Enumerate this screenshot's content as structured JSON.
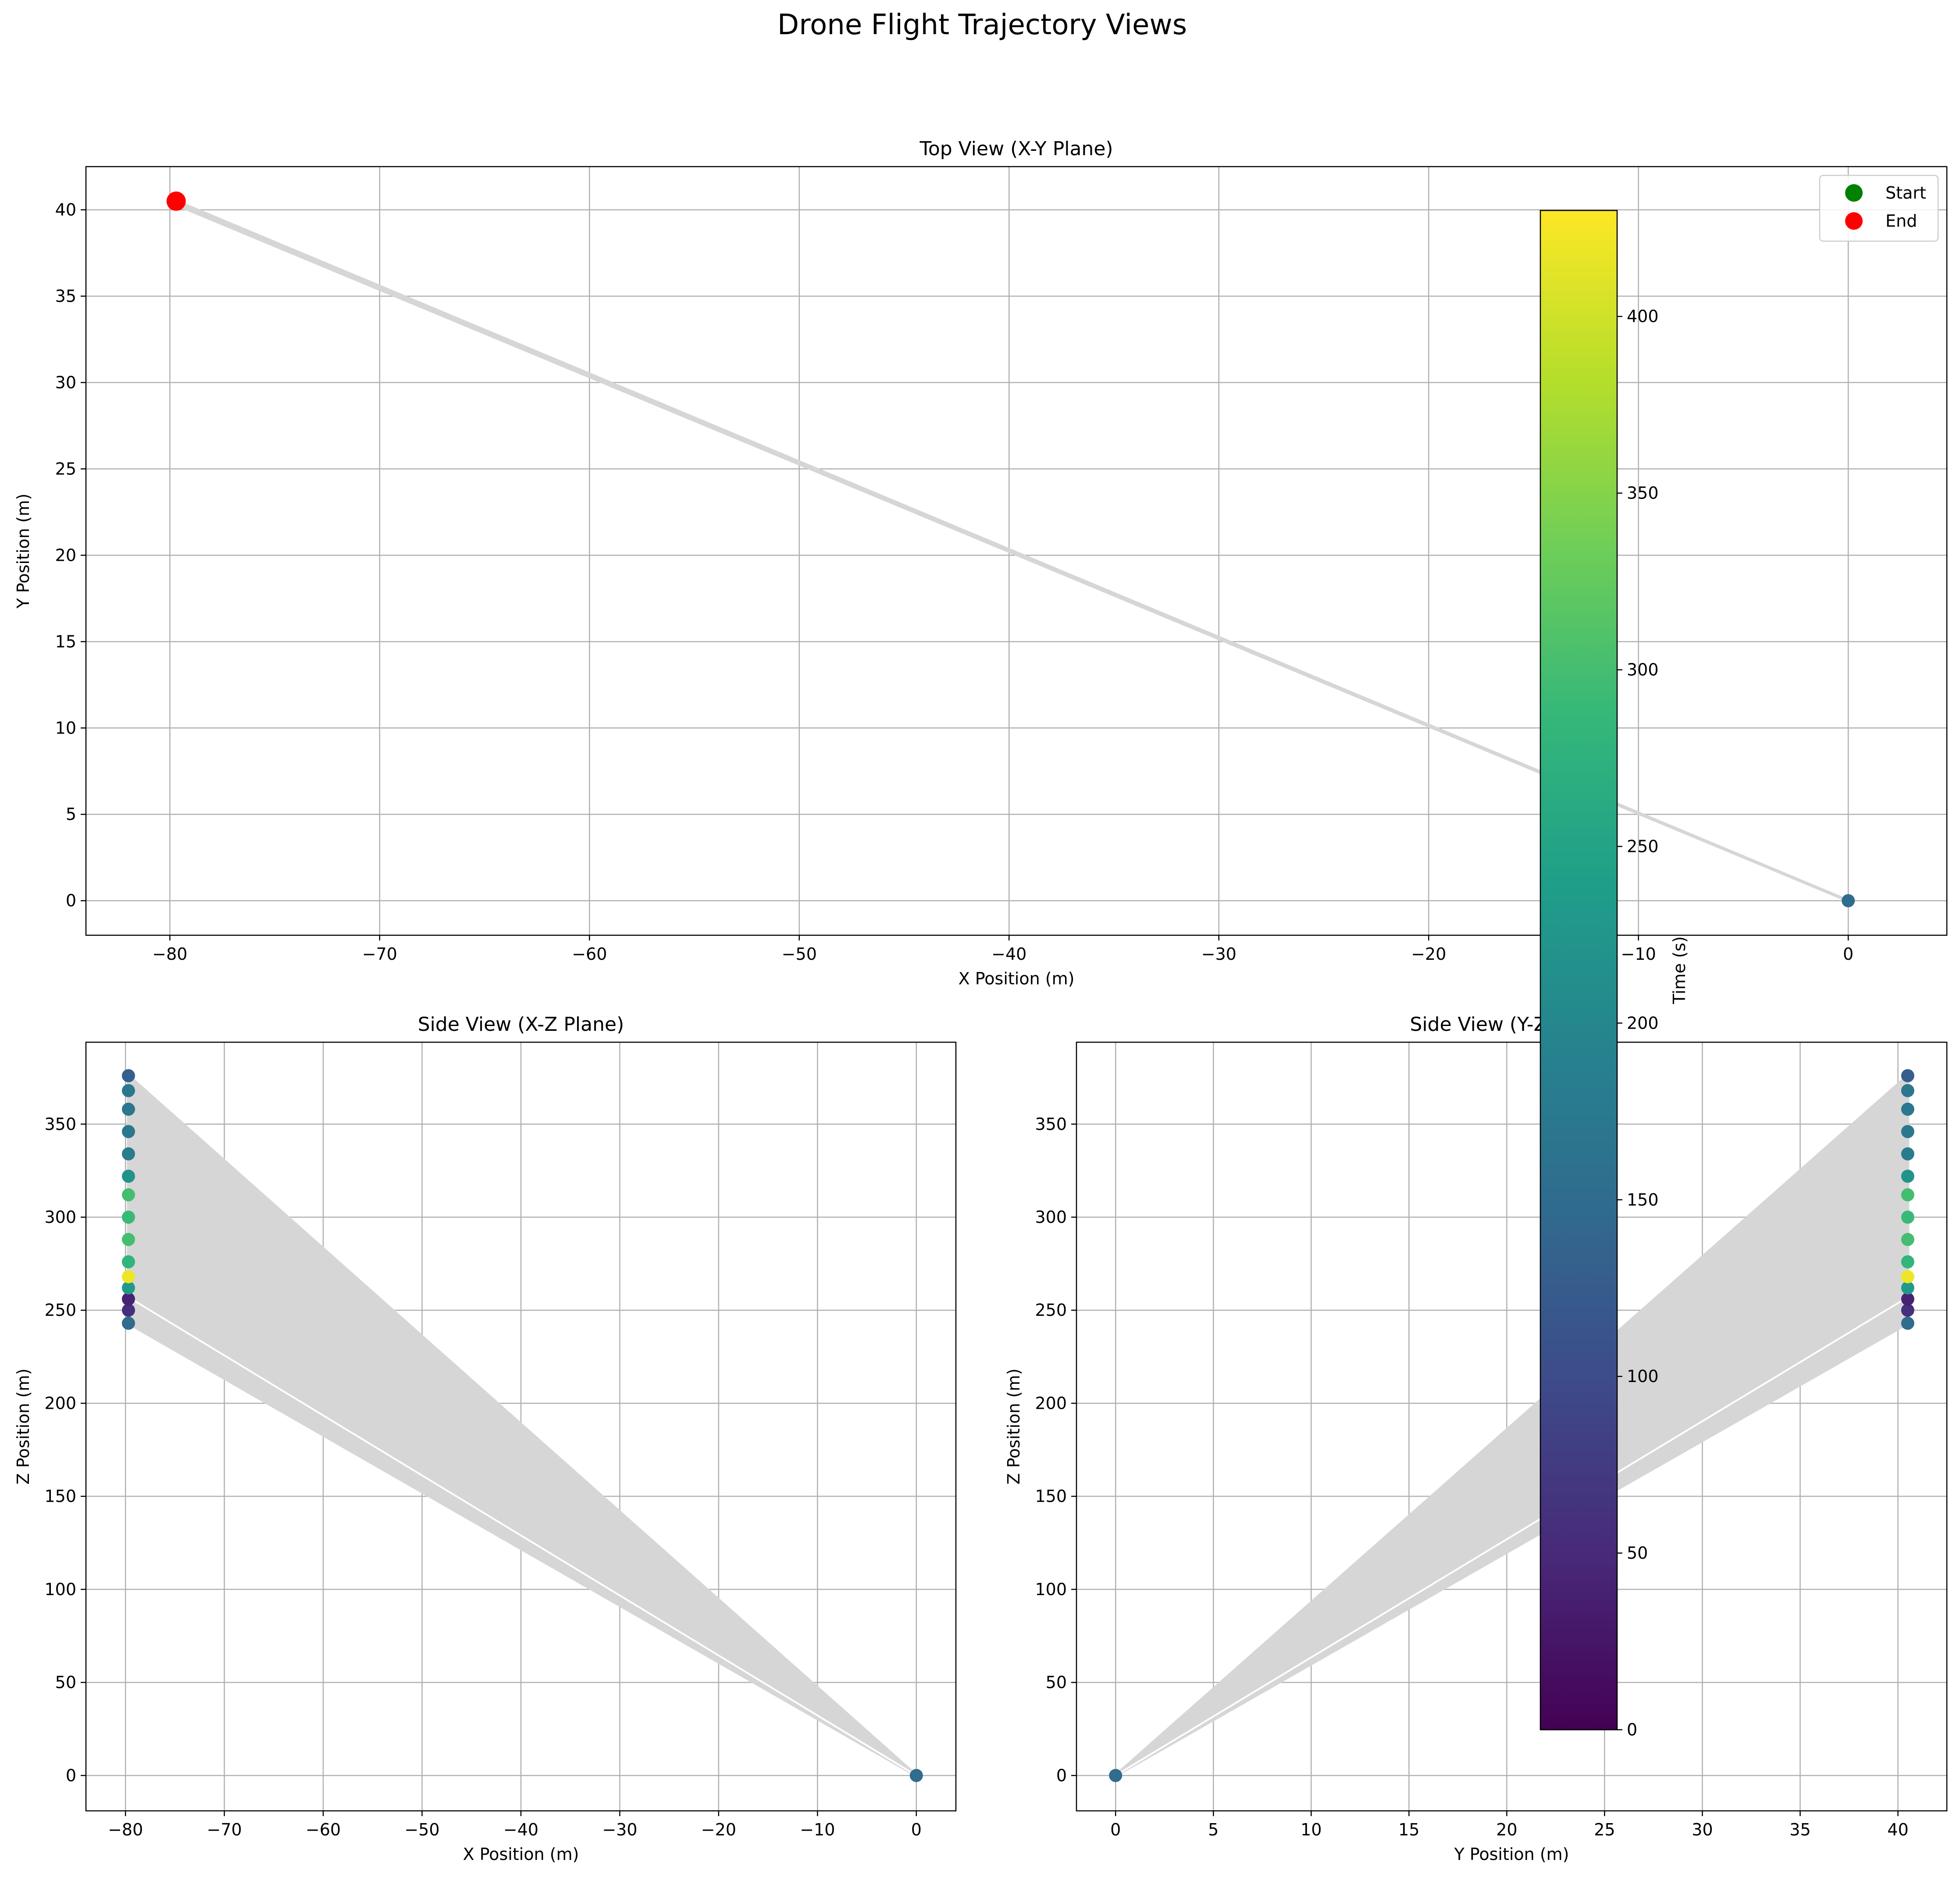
{
  "figure": {
    "title": "Drone Flight Trajectory Views"
  },
  "colors": {
    "trajectory_fill": "#d6d6d6",
    "grid": "#b0b0b0",
    "start_marker": "#008000",
    "end_marker": "#ff0000",
    "colormap": "viridis",
    "viridis_stops": [
      "#440154",
      "#482878",
      "#3e4989",
      "#31688e",
      "#26828e",
      "#1f9e89",
      "#35b779",
      "#6ece58",
      "#b5de2b",
      "#fde725"
    ]
  },
  "colorbar": {
    "label": "Time (s)",
    "range": [
      0,
      430
    ],
    "ticks": [
      0,
      50,
      100,
      150,
      200,
      250,
      300,
      350,
      400
    ],
    "tick_labels": [
      "0",
      "50",
      "100",
      "150",
      "200",
      "250",
      "300",
      "350",
      "400"
    ]
  },
  "chart_data": [
    {
      "id": "top",
      "type": "scatter",
      "title": "Top View (X-Y Plane)",
      "xlabel": "X Position (m)",
      "ylabel": "Y Position (m)",
      "xlim": [
        -84,
        4.7
      ],
      "ylim": [
        -2,
        42.5
      ],
      "xticks": [
        -80,
        -70,
        -60,
        -50,
        -40,
        -30,
        -20,
        -10,
        0
      ],
      "xtick_labels": [
        "−80",
        "−70",
        "−60",
        "−50",
        "−40",
        "−30",
        "−20",
        "−10",
        "0"
      ],
      "yticks": [
        0,
        5,
        10,
        15,
        20,
        25,
        30,
        35,
        40
      ],
      "ytick_labels": [
        "0",
        "5",
        "10",
        "15",
        "20",
        "25",
        "30",
        "35",
        "40"
      ],
      "grid": true,
      "legend": {
        "placement": "top-right",
        "entries": [
          {
            "label": "Start",
            "color": "#008000"
          },
          {
            "label": "End",
            "color": "#ff0000"
          }
        ]
      },
      "trajectory_polygon": [
        [
          0,
          0
        ],
        [
          -79.7,
          40.5
        ],
        [
          -79.9,
          40.4
        ],
        [
          0,
          0
        ]
      ],
      "points": [
        {
          "x": 0,
          "y": 0,
          "t": 150
        },
        {
          "x": -79.7,
          "y": 40.5,
          "t": 200
        }
      ],
      "start": {
        "x": 0,
        "y": 0
      },
      "end": {
        "x": -79.7,
        "y": 40.5
      }
    },
    {
      "id": "xz",
      "type": "scatter",
      "title": "Side View (X-Z Plane)",
      "xlabel": "X Position (m)",
      "ylabel": "Z Position (m)",
      "xlim": [
        -84,
        4
      ],
      "ylim": [
        -19,
        394
      ],
      "xticks": [
        -80,
        -70,
        -60,
        -50,
        -40,
        -30,
        -20,
        -10,
        0
      ],
      "xtick_labels": [
        "−80",
        "−70",
        "−60",
        "−50",
        "−40",
        "−30",
        "−20",
        "−10",
        "0"
      ],
      "yticks": [
        0,
        50,
        100,
        150,
        200,
        250,
        300,
        350
      ],
      "ytick_labels": [
        "0",
        "50",
        "100",
        "150",
        "200",
        "250",
        "300",
        "350"
      ],
      "grid": true,
      "trajectory_polygon": [
        [
          0,
          0
        ],
        [
          -79.7,
          376
        ],
        [
          -79.7,
          243
        ],
        [
          0,
          0
        ]
      ],
      "white_line": [
        [
          0,
          0
        ],
        [
          -79.7,
          257
        ]
      ],
      "points": [
        {
          "x": -79.7,
          "y": 243,
          "t": 150
        },
        {
          "x": -79.7,
          "y": 250,
          "t": 60
        },
        {
          "x": -79.7,
          "y": 256,
          "t": 40
        },
        {
          "x": -79.7,
          "y": 262,
          "t": 230
        },
        {
          "x": -79.7,
          "y": 268,
          "t": 420
        },
        {
          "x": -79.7,
          "y": 276,
          "t": 280
        },
        {
          "x": -79.7,
          "y": 288,
          "t": 300
        },
        {
          "x": -79.7,
          "y": 300,
          "t": 290
        },
        {
          "x": -79.7,
          "y": 312,
          "t": 300
        },
        {
          "x": -79.7,
          "y": 322,
          "t": 220
        },
        {
          "x": -79.7,
          "y": 334,
          "t": 180
        },
        {
          "x": -79.7,
          "y": 346,
          "t": 170
        },
        {
          "x": -79.7,
          "y": 358,
          "t": 170
        },
        {
          "x": -79.7,
          "y": 368,
          "t": 170
        },
        {
          "x": -79.7,
          "y": 376,
          "t": 130
        },
        {
          "x": 0,
          "y": 0,
          "t": 150
        }
      ]
    },
    {
      "id": "yz",
      "type": "scatter",
      "title": "Side View (Y-Z Plane)",
      "xlabel": "Y Position (m)",
      "ylabel": "Z Position (m)",
      "xlim": [
        -2,
        42.5
      ],
      "ylim": [
        -19,
        394
      ],
      "xticks": [
        0,
        5,
        10,
        15,
        20,
        25,
        30,
        35,
        40
      ],
      "xtick_labels": [
        "0",
        "5",
        "10",
        "15",
        "20",
        "25",
        "30",
        "35",
        "40"
      ],
      "yticks": [
        0,
        50,
        100,
        150,
        200,
        250,
        300,
        350
      ],
      "ytick_labels": [
        "0",
        "50",
        "100",
        "150",
        "200",
        "250",
        "300",
        "350"
      ],
      "grid": true,
      "trajectory_polygon": [
        [
          0,
          0
        ],
        [
          40.5,
          376
        ],
        [
          40.5,
          243
        ],
        [
          0,
          0
        ]
      ],
      "white_line": [
        [
          0,
          0
        ],
        [
          40.5,
          257
        ]
      ],
      "points": [
        {
          "x": 40.5,
          "y": 243,
          "t": 150
        },
        {
          "x": 40.5,
          "y": 250,
          "t": 60
        },
        {
          "x": 40.5,
          "y": 256,
          "t": 40
        },
        {
          "x": 40.5,
          "y": 262,
          "t": 230
        },
        {
          "x": 40.5,
          "y": 268,
          "t": 420
        },
        {
          "x": 40.5,
          "y": 276,
          "t": 280
        },
        {
          "x": 40.5,
          "y": 288,
          "t": 300
        },
        {
          "x": 40.5,
          "y": 300,
          "t": 290
        },
        {
          "x": 40.5,
          "y": 312,
          "t": 300
        },
        {
          "x": 40.5,
          "y": 322,
          "t": 220
        },
        {
          "x": 40.5,
          "y": 334,
          "t": 180
        },
        {
          "x": 40.5,
          "y": 346,
          "t": 170
        },
        {
          "x": 40.5,
          "y": 358,
          "t": 170
        },
        {
          "x": 40.5,
          "y": 368,
          "t": 170
        },
        {
          "x": 40.5,
          "y": 376,
          "t": 130
        },
        {
          "x": 0,
          "y": 0,
          "t": 150
        }
      ]
    }
  ]
}
